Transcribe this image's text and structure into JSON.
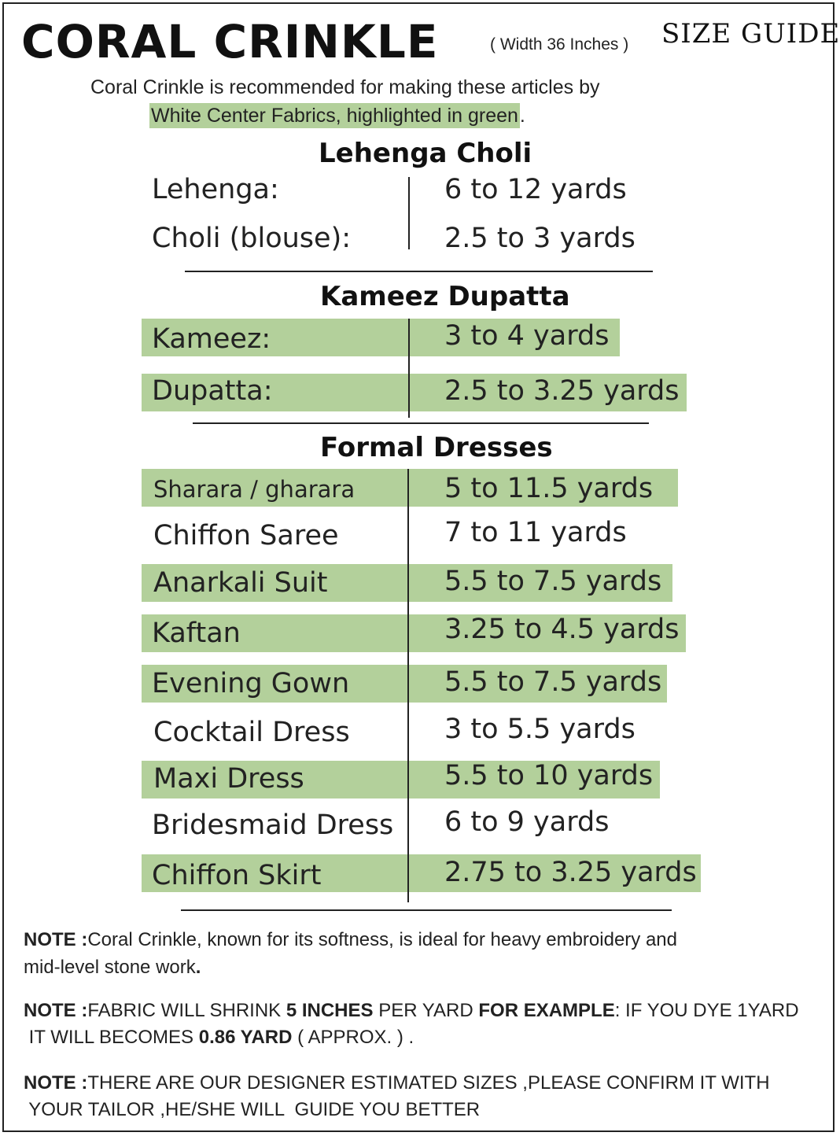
{
  "header": {
    "title": "CORAL CRINKLE",
    "width_note": "( Width 36 Inches )",
    "size_guide": "SIZE GUIDE"
  },
  "intro": {
    "line1": "Coral Crinkle is recommended for making these articles by",
    "line2_highlight": "White Center Fabrics,  highlighted in green",
    "line2_end": "."
  },
  "sections": [
    {
      "title": "Lehenga Choli",
      "rows": [
        {
          "label": "Lehenga:",
          "value": "6 to 12 yards",
          "highlighted": false
        },
        {
          "label": "Choli (blouse):",
          "value": "2.5 to 3 yards",
          "highlighted": false
        }
      ]
    },
    {
      "title": "Kameez Dupatta",
      "rows": [
        {
          "label": "Kameez:",
          "value": "3 to 4 yards",
          "highlighted": true
        },
        {
          "label": "Dupatta:",
          "value": "2.5 to 3.25 yards",
          "highlighted": true
        }
      ]
    },
    {
      "title": "Formal Dresses",
      "rows": [
        {
          "label": "Sharara / gharara",
          "value": "5  to 11.5 yards",
          "highlighted": true
        },
        {
          "label": "Chiffon Saree",
          "value": "7 to 11 yards",
          "highlighted": false
        },
        {
          "label": "Anarkali Suit",
          "value": "5.5 to 7.5 yards",
          "highlighted": true
        },
        {
          "label": "Kaftan",
          "value": "3.25 to 4.5 yards",
          "highlighted": true
        },
        {
          "label": "Evening Gown",
          "value": "5.5 to 7.5 yards",
          "highlighted": true
        },
        {
          "label": "Cocktail Dress",
          "value": "3 to 5.5 yards",
          "highlighted": false
        },
        {
          "label": "Maxi Dress",
          "value": "5.5 to 10 yards",
          "highlighted": true
        },
        {
          "label": "Bridesmaid Dress",
          "value": "6 to 9 yards",
          "highlighted": false
        },
        {
          "label": "Chiffon Skirt",
          "value": "2.75 to 3.25 yards",
          "highlighted": true
        }
      ]
    }
  ],
  "notes": {
    "note1": {
      "prefix": "NOTE :",
      "text_a": "Coral Crinkle, known for its softness, is ideal for heavy embroidery and",
      "text_b": "mid-level  stone work",
      "end": "."
    },
    "note2": {
      "prefix": "NOTE :",
      "part1": "FABRIC WILL SHRINK ",
      "bold1": "5 INCHES",
      "part2": " PER YARD ",
      "bold2": "FOR EXAMPLE",
      "part3": ": IF YOU DYE 1YARD",
      "line2a": " IT WILL BECOMES ",
      "bold3": "0.86 YARD",
      "line2b": " ( APPROX. ) ."
    },
    "note3": {
      "prefix": "NOTE :",
      "line1": "THERE ARE OUR DESIGNER  ESTIMATED SIZES ,PLEASE CONFIRM IT WITH",
      "line2": " YOUR TAILOR ,HE/SHE WILL  GUIDE YOU BETTER"
    }
  },
  "colors": {
    "highlight": "#b3d09b",
    "text": "#222222"
  }
}
